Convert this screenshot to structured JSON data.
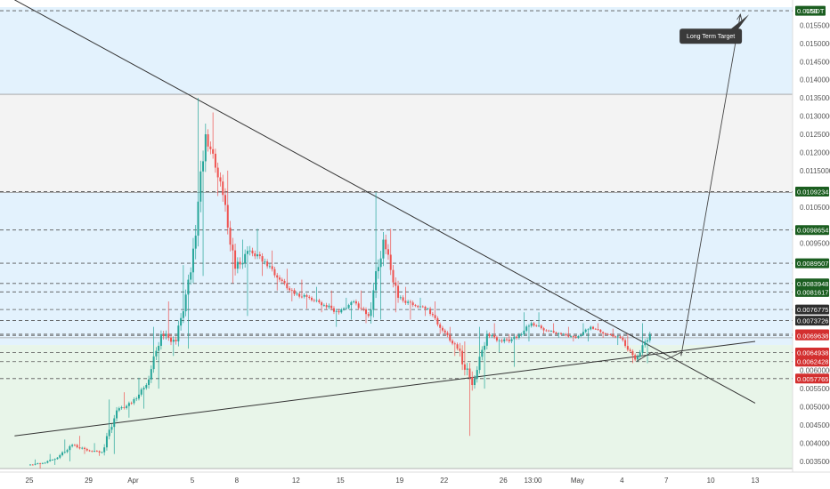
{
  "chart_data": {
    "type": "candlestick",
    "symbol_tag": "USDT",
    "colors": {
      "up": "#26a69a",
      "down": "#ef5350",
      "green_tag": "#1b5e20",
      "red_tag": "#d32f2f",
      "dark_tag": "#2e2e2e",
      "blue_zone": "#e3f2fd",
      "gray_zone": "#f3f3f3",
      "green_zone": "#e8f5e9",
      "dashed": "#555555",
      "trend": "#333333"
    },
    "y_axis": {
      "min": 0.0033,
      "max": 0.016,
      "ticks": [
        {
          "value": 0.0155,
          "label": "0.0155000"
        },
        {
          "value": 0.015,
          "label": "0.0150000"
        },
        {
          "value": 0.0145,
          "label": "0.0145000"
        },
        {
          "value": 0.014,
          "label": "0.0140000"
        },
        {
          "value": 0.0135,
          "label": "0.0135000"
        },
        {
          "value": 0.013,
          "label": "0.0130000"
        },
        {
          "value": 0.0125,
          "label": "0.0125000"
        },
        {
          "value": 0.012,
          "label": "0.0120000"
        },
        {
          "value": 0.0115,
          "label": "0.0115000"
        },
        {
          "value": 0.0105,
          "label": "0.0105000"
        },
        {
          "value": 0.0095,
          "label": "0.0095000"
        },
        {
          "value": 0.006,
          "label": "0.0060000"
        },
        {
          "value": 0.0055,
          "label": "0.0055000"
        },
        {
          "value": 0.005,
          "label": "0.0050000"
        },
        {
          "value": 0.0045,
          "label": "0.0045000"
        },
        {
          "value": 0.004,
          "label": "0.0040000"
        },
        {
          "value": 0.0035,
          "label": "0.0035000"
        }
      ]
    },
    "x_axis": {
      "domain": [
        "2021-03-25",
        "2021-05-13"
      ],
      "ticks": [
        {
          "date": "2021-03-25",
          "label": "25"
        },
        {
          "date": "2021-03-29",
          "label": "29"
        },
        {
          "date": "2021-04-01",
          "label": "Apr"
        },
        {
          "date": "2021-04-05",
          "label": "5"
        },
        {
          "date": "2021-04-08",
          "label": "8"
        },
        {
          "date": "2021-04-12",
          "label": "12"
        },
        {
          "date": "2021-04-15",
          "label": "15"
        },
        {
          "date": "2021-04-19",
          "label": "19"
        },
        {
          "date": "2021-04-22",
          "label": "22"
        },
        {
          "date": "2021-04-26",
          "label": "26"
        },
        {
          "date": "2021-04-28",
          "label": "13:00"
        },
        {
          "date": "2021-05-01",
          "label": "May"
        },
        {
          "date": "2021-05-04",
          "label": "4"
        },
        {
          "date": "2021-05-07",
          "label": "7"
        },
        {
          "date": "2021-05-10",
          "label": "10"
        },
        {
          "date": "2021-05-13",
          "label": "13"
        }
      ]
    },
    "zones": [
      {
        "from": 0.0136,
        "to": 0.016,
        "color": "blue_zone"
      },
      {
        "from": 0.0109,
        "to": 0.0136,
        "color": "gray_zone"
      },
      {
        "from": 0.0067,
        "to": 0.0109,
        "color": "blue_zone"
      },
      {
        "from": 0.0033,
        "to": 0.0067,
        "color": "green_zone"
      }
    ],
    "price_levels": [
      {
        "value": 0.0159,
        "label": "0.0159",
        "tag": "green_tag"
      },
      {
        "value": 0.0109234,
        "label": "0.0109234",
        "tag": "green_tag"
      },
      {
        "value": 0.0098654,
        "label": "0.0098654",
        "tag": "green_tag"
      },
      {
        "value": 0.0089507,
        "label": "0.0089507",
        "tag": "green_tag"
      },
      {
        "value": 0.0083948,
        "label": "0.0083948",
        "tag": "green_tag"
      },
      {
        "value": 0.0081617,
        "label": "0.0081617",
        "tag": "green_tag"
      },
      {
        "value": 0.0076775,
        "label": "0.0076775",
        "tag": "dark_tag"
      },
      {
        "value": 0.0073726,
        "label": "0.0073726",
        "tag": "dark_tag"
      },
      {
        "value": 0.006996,
        "label": "0.0069960",
        "tag": "red_tag"
      },
      {
        "value": 0.0069638,
        "label": "0.0069638",
        "tag": "red_tag"
      },
      {
        "value": 0.0064938,
        "label": "0.0064938",
        "tag": "red_tag"
      },
      {
        "value": 0.0062428,
        "label": "0.0062428",
        "tag": "red_tag"
      },
      {
        "value": 0.0057765,
        "label": "0.0057765",
        "tag": "red_tag"
      }
    ],
    "solid_levels": [
      0.0136,
      0.0109,
      0.0069,
      0.0033
    ],
    "trendlines": [
      {
        "from": [
          "2021-03-24",
          0.0162
        ],
        "to": [
          "2021-05-13",
          0.0051
        ]
      },
      {
        "from": [
          "2021-03-24",
          0.0042
        ],
        "to": [
          "2021-05-13",
          0.0068
        ]
      }
    ],
    "projection": [
      [
        "2021-05-05",
        0.00625
      ],
      [
        "2021-05-06",
        0.0065
      ],
      [
        "2021-05-07",
        0.0063
      ],
      [
        "2021-05-08",
        0.0065
      ],
      [
        "2021-05-08",
        0.0064
      ],
      [
        "2021-05-12",
        0.0158
      ]
    ],
    "annotation": {
      "text": "Long Term Target",
      "date": "2021-05-10",
      "value": 0.0152
    },
    "ohlc": [
      [
        "2021-03-25",
        0.0034,
        0.00355,
        0.0033,
        0.00345
      ],
      [
        "2021-03-26",
        0.00345,
        0.0037,
        0.0034,
        0.0036
      ],
      [
        "2021-03-27",
        0.0036,
        0.0041,
        0.0035,
        0.00395
      ],
      [
        "2021-03-28",
        0.00395,
        0.0042,
        0.0037,
        0.0038
      ],
      [
        "2021-03-29",
        0.0038,
        0.004,
        0.00365,
        0.00375
      ],
      [
        "2021-03-30",
        0.00375,
        0.0052,
        0.0037,
        0.0049
      ],
      [
        "2021-03-31",
        0.0049,
        0.0054,
        0.0047,
        0.0051
      ],
      [
        "2021-04-01",
        0.0051,
        0.0058,
        0.00495,
        0.0056
      ],
      [
        "2021-04-02",
        0.0056,
        0.0072,
        0.0055,
        0.007
      ],
      [
        "2021-04-03",
        0.007,
        0.0079,
        0.0064,
        0.0068
      ],
      [
        "2021-04-04",
        0.0068,
        0.0089,
        0.0066,
        0.0087
      ],
      [
        "2021-04-05",
        0.0087,
        0.0135,
        0.0086,
        0.0125
      ],
      [
        "2021-04-06",
        0.0125,
        0.0131,
        0.0108,
        0.0112
      ],
      [
        "2021-04-07",
        0.0112,
        0.0115,
        0.0084,
        0.0088
      ],
      [
        "2021-04-08",
        0.0088,
        0.0096,
        0.0075,
        0.0093
      ],
      [
        "2021-04-09",
        0.0093,
        0.0099,
        0.0086,
        0.009
      ],
      [
        "2021-04-10",
        0.009,
        0.0093,
        0.0082,
        0.0085
      ],
      [
        "2021-04-11",
        0.0085,
        0.0088,
        0.0079,
        0.0081
      ],
      [
        "2021-04-12",
        0.0081,
        0.0085,
        0.0077,
        0.008
      ],
      [
        "2021-04-13",
        0.008,
        0.0083,
        0.0076,
        0.0078
      ],
      [
        "2021-04-14",
        0.0078,
        0.0082,
        0.0072,
        0.0076
      ],
      [
        "2021-04-15",
        0.0076,
        0.008,
        0.0074,
        0.0079
      ],
      [
        "2021-04-16",
        0.0079,
        0.0082,
        0.0073,
        0.0075
      ],
      [
        "2021-04-17",
        0.0075,
        0.0109,
        0.0074,
        0.0096
      ],
      [
        "2021-04-18",
        0.0096,
        0.0099,
        0.0076,
        0.008
      ],
      [
        "2021-04-19",
        0.008,
        0.0083,
        0.0074,
        0.0078
      ],
      [
        "2021-04-20",
        0.0078,
        0.008,
        0.0075,
        0.0077
      ],
      [
        "2021-04-21",
        0.0077,
        0.0079,
        0.007,
        0.0071
      ],
      [
        "2021-04-22",
        0.0071,
        0.0072,
        0.0064,
        0.0066
      ],
      [
        "2021-04-23",
        0.0066,
        0.0068,
        0.0042,
        0.0056
      ],
      [
        "2021-04-24",
        0.0056,
        0.0072,
        0.0055,
        0.007
      ],
      [
        "2021-04-25",
        0.007,
        0.0073,
        0.0065,
        0.0068
      ],
      [
        "2021-04-26",
        0.0068,
        0.007,
        0.0061,
        0.0069
      ],
      [
        "2021-04-27",
        0.0069,
        0.0076,
        0.0068,
        0.0073
      ],
      [
        "2021-04-28",
        0.0073,
        0.0076,
        0.007,
        0.0071
      ],
      [
        "2021-04-29",
        0.0071,
        0.0073,
        0.0069,
        0.007
      ],
      [
        "2021-04-30",
        0.007,
        0.0072,
        0.0068,
        0.0069
      ],
      [
        "2021-05-01",
        0.0069,
        0.0073,
        0.0068,
        0.0072
      ],
      [
        "2021-05-02",
        0.0072,
        0.0073,
        0.0069,
        0.007
      ],
      [
        "2021-05-03",
        0.007,
        0.00715,
        0.0067,
        0.0069
      ],
      [
        "2021-05-04",
        0.0069,
        0.007,
        0.0062,
        0.0063
      ],
      [
        "2021-05-05",
        0.0063,
        0.0073,
        0.0062,
        0.007
      ]
    ]
  }
}
